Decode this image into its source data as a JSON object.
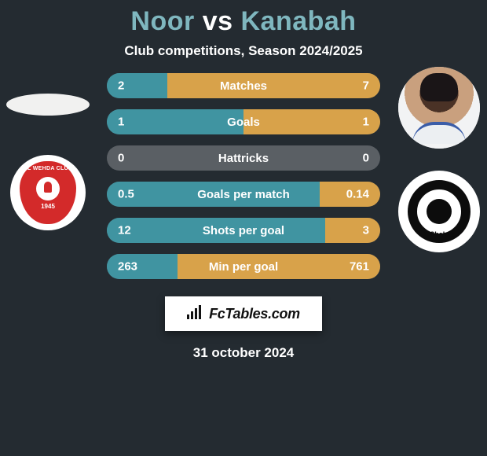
{
  "colors": {
    "background": "#242b31",
    "title_player": "#7fb7bf",
    "title_vs": "#ffffff",
    "text_white": "#ffffff",
    "bar_base": "#5a5f64",
    "bar_left": "#4094a1",
    "bar_right": "#d8a24a",
    "badge_bg": "#ffffff",
    "badge_text": "#111111",
    "club_left_red": "#d32a2a",
    "club_right_black": "#0c0c0c"
  },
  "typography": {
    "title_fontsize": 34,
    "subtitle_fontsize": 17,
    "stat_label_fontsize": 15,
    "stat_value_fontsize": 15,
    "date_fontsize": 17,
    "badge_fontsize": 18
  },
  "layout": {
    "stat_row_width": 348,
    "stat_row_height": 32,
    "stat_row_radius": 16,
    "stat_row_gap": 14,
    "avatar_diameter": 96
  },
  "title": {
    "player1": "Noor",
    "vs": "vs",
    "player2": "Kanabah"
  },
  "subtitle": "Club competitions, Season 2024/2025",
  "side_left": {
    "club_name": "AL WEHDA CLUB",
    "club_year": "1945"
  },
  "side_right": {
    "club_name": "AlShabab"
  },
  "stats": {
    "type": "comparison_bars",
    "rows": [
      {
        "label": "Matches",
        "left": "2",
        "right": "7",
        "left_pct": 22,
        "right_pct": 78
      },
      {
        "label": "Goals",
        "left": "1",
        "right": "1",
        "left_pct": 50,
        "right_pct": 50
      },
      {
        "label": "Hattricks",
        "left": "0",
        "right": "0",
        "left_pct": 0,
        "right_pct": 0
      },
      {
        "label": "Goals per match",
        "left": "0.5",
        "right": "0.14",
        "left_pct": 78,
        "right_pct": 22
      },
      {
        "label": "Shots per goal",
        "left": "12",
        "right": "3",
        "left_pct": 80,
        "right_pct": 20
      },
      {
        "label": "Min per goal",
        "left": "263",
        "right": "761",
        "left_pct": 26,
        "right_pct": 74
      }
    ]
  },
  "footer_badge": {
    "icon": "chart-icon",
    "text": "FcTables.com"
  },
  "date": "31 october 2024"
}
